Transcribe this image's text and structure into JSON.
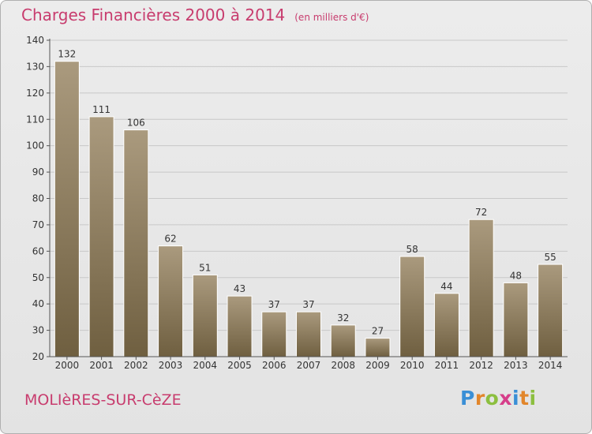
{
  "title": "Charges Financières 2000 à 2014",
  "unit": "(en milliers d'€)",
  "commune": "MOLIèRES-SUR-CèZE",
  "logo": {
    "text": "Proxiti",
    "colors": [
      "#3a8fd6",
      "#e2862b",
      "#8cbf3f",
      "#d63e8a",
      "#3a8fd6",
      "#e2862b",
      "#8cbf3f"
    ]
  },
  "colors": {
    "bar_top": "#aa9a7e",
    "bar_bottom": "#6f5f40",
    "title": "#c83c6e",
    "grid": "#c8c8c8",
    "axis": "#555555"
  },
  "chart_data": {
    "type": "bar",
    "categories": [
      "2000",
      "2001",
      "2002",
      "2003",
      "2004",
      "2005",
      "2006",
      "2007",
      "2008",
      "2009",
      "2010",
      "2011",
      "2012",
      "2013",
      "2014"
    ],
    "values": [
      132,
      111,
      106,
      62,
      51,
      43,
      37,
      37,
      32,
      27,
      58,
      44,
      72,
      48,
      55
    ],
    "yticks": [
      20,
      30,
      40,
      50,
      60,
      70,
      80,
      90,
      100,
      110,
      120,
      130,
      140
    ],
    "ylim": [
      20,
      140
    ],
    "grid": true,
    "xlabel": "",
    "ylabel": ""
  }
}
